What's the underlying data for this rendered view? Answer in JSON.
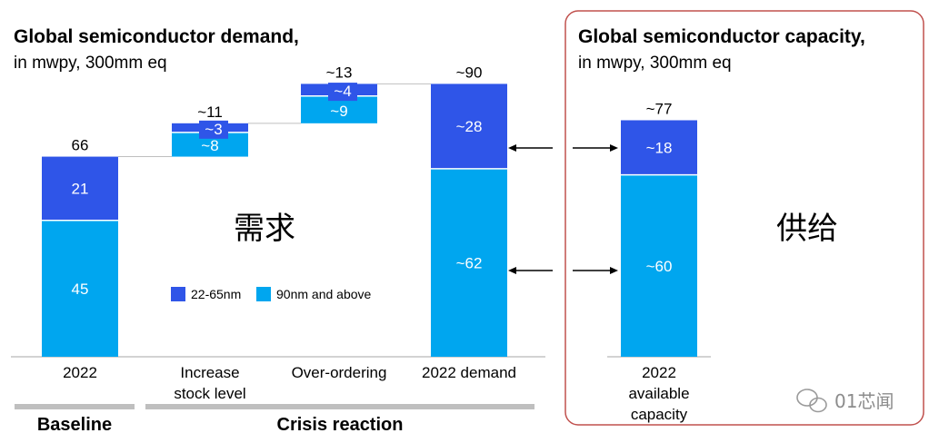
{
  "chart_data": [
    {
      "type": "bar",
      "title": "Global semiconductor demand,",
      "subtitle": "in mwpy, 300mm eq",
      "categories": [
        "2022",
        "Increase stock level",
        "Over-ordering",
        "2022 demand"
      ],
      "category_lines": [
        [
          "2022"
        ],
        [
          "Increase",
          "stock level"
        ],
        [
          "Over-ordering"
        ],
        [
          "2022 demand"
        ]
      ],
      "series": [
        {
          "name": "22-65nm",
          "color": "#2f55e8",
          "values": [
            21,
            3,
            4,
            28
          ],
          "labels": [
            "21",
            "~3",
            "~4",
            "~28"
          ]
        },
        {
          "name": "90nm and above",
          "color": "#00a6ef",
          "values": [
            45,
            8,
            9,
            62
          ],
          "labels": [
            "45",
            "~8",
            "~9",
            "~62"
          ]
        }
      ],
      "bases": [
        0,
        66,
        77,
        0
      ],
      "totals": [
        "66",
        "~11",
        "~13",
        "~90"
      ],
      "ylim": [
        0,
        90
      ],
      "legend_position": "bottom-center",
      "groups": [
        {
          "label": "Baseline",
          "categories": [
            "2022"
          ]
        },
        {
          "label": "Crisis reaction",
          "categories": [
            "Increase stock level",
            "Over-ordering",
            "2022 demand"
          ]
        }
      ],
      "annotation": "需求"
    },
    {
      "type": "bar",
      "title": "Global semiconductor capacity,",
      "subtitle": "in mwpy, 300mm eq",
      "categories": [
        "2022 available capacity"
      ],
      "category_lines": [
        [
          "2022",
          "available",
          "capacity"
        ]
      ],
      "series": [
        {
          "name": "22-65nm",
          "color": "#2f55e8",
          "values": [
            18
          ],
          "labels": [
            "~18"
          ]
        },
        {
          "name": "90nm and above",
          "color": "#00a6ef",
          "values": [
            60
          ],
          "labels": [
            "~60"
          ]
        }
      ],
      "totals": [
        "~77"
      ],
      "ylim": [
        0,
        90
      ],
      "annotation": "供给",
      "panel_border_color": "#c0504d"
    }
  ],
  "watermark": "01芯闻"
}
